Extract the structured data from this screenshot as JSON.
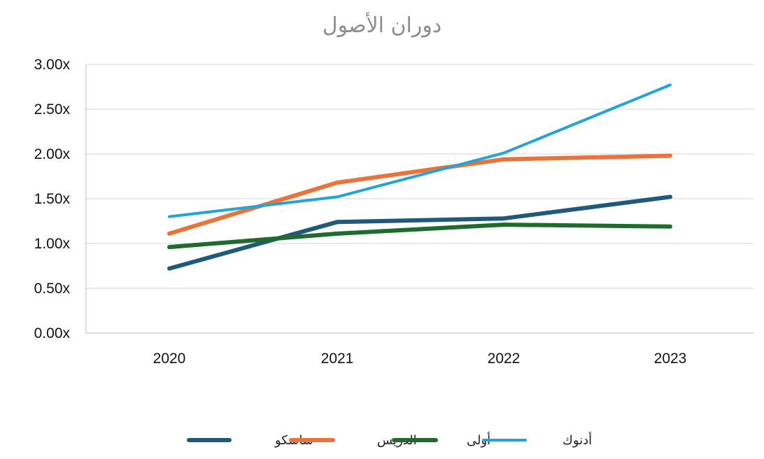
{
  "chart_data": {
    "type": "line",
    "title": "دوران الأصول",
    "xlabel": "",
    "ylabel": "",
    "categories": [
      "2020",
      "2021",
      "2022",
      "2023"
    ],
    "ylim": [
      0,
      3
    ],
    "yticks": [
      "0.00x",
      "0.50x",
      "1.00x",
      "1.50x",
      "2.00x",
      "2.50x",
      "3.00x"
    ],
    "grid": true,
    "legend_position": "bottom",
    "series": [
      {
        "name": "ساسكو",
        "values": [
          0.72,
          1.24,
          1.28,
          1.52
        ],
        "color": "#1f5a7a",
        "thick": true
      },
      {
        "name": "الدريس",
        "values": [
          1.11,
          1.68,
          1.94,
          1.98
        ],
        "color": "#e8743b",
        "thick": true
      },
      {
        "name": "أولى",
        "values": [
          0.96,
          1.11,
          1.21,
          1.19
        ],
        "color": "#1e6b2e",
        "thick": true
      },
      {
        "name": "أدنوك",
        "values": [
          1.3,
          1.52,
          2.01,
          2.77
        ],
        "color": "#24a3d6",
        "thick": false
      }
    ]
  }
}
